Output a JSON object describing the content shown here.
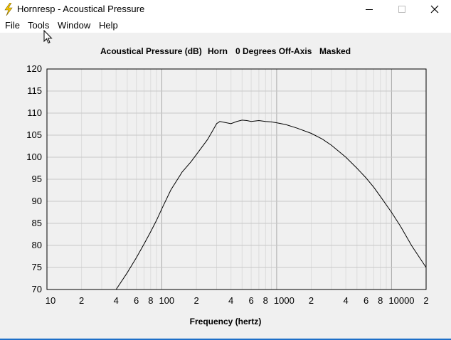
{
  "window": {
    "title": "Hornresp - Acoustical Pressure",
    "icon": "lightning-bolt-icon",
    "controls": [
      "minimize-icon",
      "maximize-icon",
      "close-icon"
    ]
  },
  "menu": {
    "items": [
      "File",
      "Tools",
      "Window",
      "Help"
    ]
  },
  "chart_header": {
    "parts": [
      "Acoustical Pressure (dB)",
      "Horn",
      "0 Degrees Off-Axis",
      "Masked"
    ]
  },
  "chart_data": {
    "type": "line",
    "title": "Acoustical Pressure (dB)   Horn   0 Degrees Off-Axis   Masked",
    "xlabel": "Frequency (hertz)",
    "ylabel": "",
    "x_scale": "log",
    "xlim": [
      10,
      20000
    ],
    "ylim": [
      70,
      120
    ],
    "grid": true,
    "x_tick_labels": [
      {
        "value": 10,
        "label": "10"
      },
      {
        "value": 20,
        "label": "2"
      },
      {
        "value": 40,
        "label": "4"
      },
      {
        "value": 60,
        "label": "6"
      },
      {
        "value": 80,
        "label": "8"
      },
      {
        "value": 100,
        "label": "100"
      },
      {
        "value": 200,
        "label": "2"
      },
      {
        "value": 400,
        "label": "4"
      },
      {
        "value": 600,
        "label": "6"
      },
      {
        "value": 800,
        "label": "8"
      },
      {
        "value": 1000,
        "label": "1000"
      },
      {
        "value": 2000,
        "label": "2"
      },
      {
        "value": 4000,
        "label": "4"
      },
      {
        "value": 6000,
        "label": "6"
      },
      {
        "value": 8000,
        "label": "8"
      },
      {
        "value": 10000,
        "label": "10000"
      },
      {
        "value": 20000,
        "label": "2"
      }
    ],
    "y_ticks": [
      70,
      75,
      80,
      85,
      90,
      95,
      100,
      105,
      110,
      115,
      120
    ],
    "series": [
      {
        "color": "#000000",
        "x": [
          40,
          50,
          60,
          70,
          80,
          90,
          100,
          120,
          150,
          180,
          200,
          250,
          280,
          300,
          320,
          350,
          400,
          450,
          500,
          550,
          600,
          700,
          800,
          900,
          1000,
          1200,
          1500,
          2000,
          2500,
          3000,
          4000,
          5000,
          6000,
          7000,
          8000,
          10000,
          12000,
          15000,
          20000
        ],
        "y": [
          70,
          73.8,
          77.2,
          80.3,
          83.1,
          85.7,
          88.3,
          92.6,
          96.6,
          99.0,
          100.6,
          104.0,
          106.2,
          107.6,
          108.1,
          107.9,
          107.6,
          108.1,
          108.4,
          108.3,
          108.1,
          108.3,
          108.1,
          108.0,
          107.8,
          107.4,
          106.6,
          105.4,
          104.1,
          102.7,
          100.0,
          97.5,
          95.3,
          93.2,
          91.1,
          87.5,
          84.3,
          79.9,
          75.0
        ]
      }
    ]
  }
}
